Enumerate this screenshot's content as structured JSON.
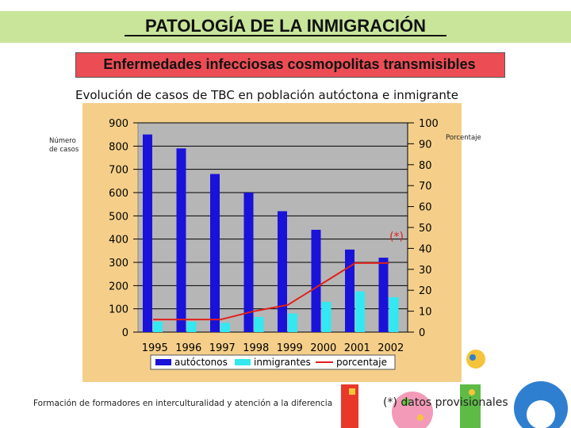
{
  "header": {
    "title": "PATOLOGÍA DE LA INMIGRACIÓN",
    "subtitle": "Enfermedades infecciosas cosmopolitas transmisibles"
  },
  "chart_heading": "Evolución de casos de TBC en población autóctona e inmigrante",
  "chart_data": {
    "type": "bar",
    "categories": [
      "1995",
      "1996",
      "1997",
      "1998",
      "1999",
      "2000",
      "2001",
      "2002"
    ],
    "series": [
      {
        "name": "autóctonos",
        "kind": "bar",
        "axis": "left",
        "color": "#1a12d8",
        "values": [
          850,
          790,
          680,
          600,
          520,
          440,
          355,
          320
        ]
      },
      {
        "name": "inmigrantes",
        "kind": "bar",
        "axis": "left",
        "color": "#33e8f0",
        "values": [
          45,
          45,
          40,
          65,
          80,
          130,
          175,
          150
        ]
      },
      {
        "name": "porcentaje",
        "kind": "line",
        "axis": "right",
        "color": "#e0201c",
        "values": [
          6,
          6,
          6,
          10,
          13,
          23,
          33,
          33
        ]
      }
    ],
    "left_axis": {
      "label": "Número de casos",
      "min": 0,
      "max": 900,
      "ticks": [
        "0",
        "100",
        "200",
        "300",
        "400",
        "500",
        "600",
        "700",
        "800",
        "900"
      ]
    },
    "right_axis": {
      "label": "Porcentaje",
      "min": 0,
      "max": 100,
      "ticks": [
        "0",
        "10",
        "20",
        "30",
        "40",
        "50",
        "60",
        "70",
        "80",
        "90",
        "100"
      ]
    },
    "annotation": "(*)",
    "legend": [
      "autóctonos",
      "inmigrantes",
      "porcentaje"
    ]
  },
  "footer": {
    "text": "Formación de formadores en interculturalidad y atención a la diferencia",
    "note": "(*) datos provisionales"
  }
}
